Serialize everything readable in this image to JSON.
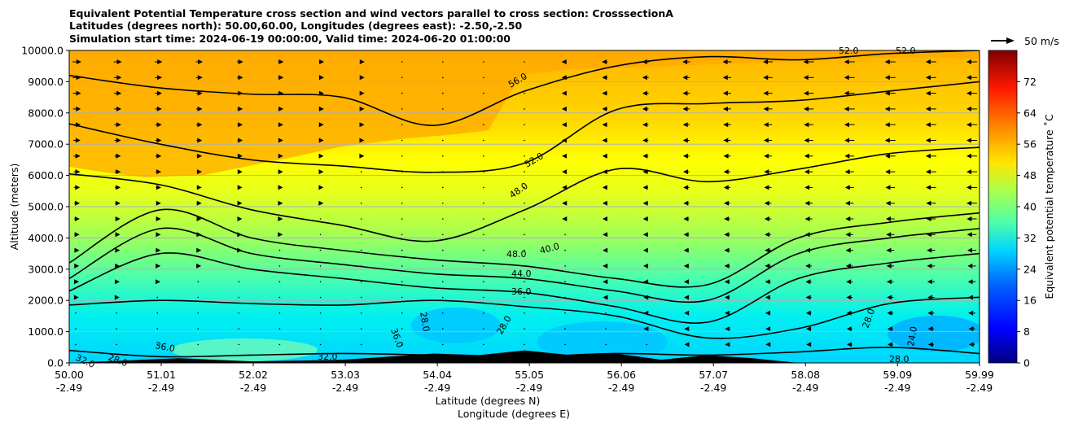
{
  "chart_data": {
    "type": "contour",
    "title_lines": [
      "Equivalent Potential Temperature cross section and wind vectors parallel to cross section: CrosssectionA",
      "Latitudes (degrees north): 50.00,60.00, Longitudes (degrees east): -2.50,-2.50",
      "Simulation start time: 2024-06-19 00:00:00, Valid time: 2024-06-20 01:00:00"
    ],
    "ylabel": "Altitude (meters)",
    "xlabel_lat": "Latitude (degrees N)",
    "xlabel_lon": "Longitude (degrees E)",
    "y_ticks": [
      "0.0",
      "1000.0",
      "2000.0",
      "3000.0",
      "4000.0",
      "5000.0",
      "6000.0",
      "7000.0",
      "8000.0",
      "9000.0",
      "10000.0"
    ],
    "ylim": [
      0,
      10000
    ],
    "xlim": [
      50.0,
      59.99
    ],
    "x_ticks": [
      {
        "lat": "50.00",
        "lon": "-2.49"
      },
      {
        "lat": "51.01",
        "lon": "-2.49"
      },
      {
        "lat": "52.02",
        "lon": "-2.49"
      },
      {
        "lat": "53.03",
        "lon": "-2.49"
      },
      {
        "lat": "54.04",
        "lon": "-2.49"
      },
      {
        "lat": "55.05",
        "lon": "-2.49"
      },
      {
        "lat": "56.06",
        "lon": "-2.49"
      },
      {
        "lat": "57.07",
        "lon": "-2.49"
      },
      {
        "lat": "58.08",
        "lon": "-2.49"
      },
      {
        "lat": "59.09",
        "lon": "-2.49"
      },
      {
        "lat": "59.99",
        "lon": "-2.49"
      }
    ],
    "grid": "horizontal",
    "quiver_key_label": "50 m/s",
    "colorbar_label": "Equivalent potential temperature ˚C",
    "colorbar_ticks": [
      "0",
      "8",
      "16",
      "24",
      "32",
      "40",
      "48",
      "56",
      "64",
      "72"
    ],
    "colorbar_range": [
      0,
      80
    ],
    "colorbar_colors": [
      "#00007f",
      "#0000ff",
      "#0063ff",
      "#00d4ff",
      "#4effa9",
      "#a9ff4e",
      "#ffe600",
      "#ff8c00",
      "#ff1800",
      "#7f0000"
    ],
    "contour_labels": [
      "56.0",
      "52.0",
      "48.0",
      "48.0",
      "44.0",
      "36.0",
      "36.0",
      "36.0",
      "32.0",
      "32.0",
      "28.0",
      "28.0",
      "28.0",
      "28.0",
      "24.0",
      "28.0",
      "40.0",
      "52.0",
      "52.0"
    ],
    "contour_lines_altitude_m": [
      {
        "level": 28,
        "lat": [
          50.0,
          51.0,
          52.0,
          53.0,
          54.0,
          55.0,
          56.0,
          57.0,
          58.0,
          59.0,
          59.99
        ],
        "alt": [
          400,
          200,
          250,
          300,
          250,
          200,
          300,
          250,
          350,
          500,
          300
        ]
      },
      {
        "level": 32,
        "lat": [
          50.0,
          51.0,
          52.0,
          53.0,
          54.0,
          55.0,
          56.0,
          57.0,
          58.0,
          59.0,
          59.99
        ],
        "alt": [
          1850,
          2000,
          1900,
          1850,
          2000,
          1800,
          1500,
          800,
          1100,
          1900,
          2100
        ]
      },
      {
        "level": 36,
        "lat": [
          50.0,
          51.0,
          52.0,
          53.0,
          54.0,
          55.0,
          56.0,
          57.0,
          58.0,
          59.0,
          59.99
        ],
        "alt": [
          2300,
          3500,
          3000,
          2700,
          2400,
          2250,
          1800,
          1300,
          2700,
          3200,
          3500
        ]
      },
      {
        "level": 40,
        "lat": [
          50.0,
          51.0,
          52.0,
          53.0,
          54.0,
          55.0,
          56.0,
          57.0,
          58.0,
          59.0,
          59.99
        ],
        "alt": [
          2700,
          4300,
          3500,
          3150,
          2850,
          2700,
          2300,
          2000,
          3500,
          4000,
          4300
        ]
      },
      {
        "level": 44,
        "lat": [
          50.0,
          51.0,
          52.0,
          53.0,
          54.0,
          55.0,
          56.0,
          57.0,
          58.0,
          59.0,
          59.99
        ],
        "alt": [
          3200,
          4900,
          4000,
          3600,
          3300,
          3100,
          2700,
          2500,
          4000,
          4500,
          4800
        ]
      },
      {
        "level": 48,
        "lat": [
          50.0,
          51.0,
          52.0,
          53.0,
          54.0,
          55.0,
          56.0,
          57.0,
          58.0,
          59.0,
          59.99
        ],
        "alt": [
          6050,
          5700,
          4900,
          4400,
          3900,
          4900,
          6200,
          5800,
          6200,
          6700,
          6900
        ]
      },
      {
        "level": 52,
        "lat": [
          50.0,
          51.0,
          52.0,
          53.0,
          54.0,
          55.0,
          56.0,
          57.0,
          58.0,
          59.0,
          59.99
        ],
        "alt": [
          7650,
          7000,
          6500,
          6300,
          6100,
          6400,
          8100,
          8300,
          8400,
          8700,
          9000
        ]
      },
      {
        "level": 56,
        "lat": [
          50.0,
          51.0,
          52.0,
          53.0,
          54.0,
          55.0,
          56.0,
          57.0,
          58.0,
          59.0,
          59.99
        ],
        "alt": [
          9200,
          8800,
          8600,
          8500,
          7600,
          8700,
          9500,
          9800,
          9700,
          9900,
          10000
        ]
      }
    ],
    "terrain_altitude_m": {
      "lat": [
        50.0,
        50.8,
        51.2,
        52.0,
        53.0,
        53.5,
        54.0,
        54.5,
        55.0,
        55.5,
        56.0,
        56.5,
        57.0,
        57.5,
        58.0,
        59.0,
        59.99
      ],
      "alt": [
        0,
        100,
        150,
        50,
        100,
        200,
        300,
        250,
        400,
        250,
        300,
        100,
        250,
        150,
        0,
        0,
        0
      ]
    }
  }
}
